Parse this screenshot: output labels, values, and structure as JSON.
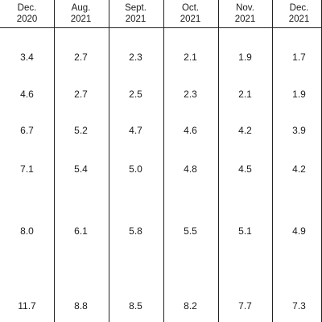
{
  "columns": [
    {
      "month": "Dec.",
      "year": "2020"
    },
    {
      "month": "Aug.",
      "year": "2021"
    },
    {
      "month": "Sept.",
      "year": "2021"
    },
    {
      "month": "Oct.",
      "year": "2021"
    },
    {
      "month": "Nov.",
      "year": "2021"
    },
    {
      "month": "Dec.",
      "year": "2021"
    }
  ],
  "rows": [
    [
      "3.4",
      "2.7",
      "2.3",
      "2.1",
      "1.9",
      "1.7"
    ],
    [
      "4.6",
      "2.7",
      "2.5",
      "2.3",
      "2.1",
      "1.9"
    ],
    [
      "6.7",
      "5.2",
      "4.7",
      "4.6",
      "4.2",
      "3.9"
    ],
    [
      "7.1",
      "5.4",
      "5.0",
      "4.8",
      "4.5",
      "4.2"
    ],
    [
      "8.0",
      "6.1",
      "5.8",
      "5.5",
      "5.1",
      "4.9"
    ],
    [
      "11.7",
      "8.8",
      "8.5",
      "8.2",
      "7.7",
      "7.3"
    ]
  ]
}
